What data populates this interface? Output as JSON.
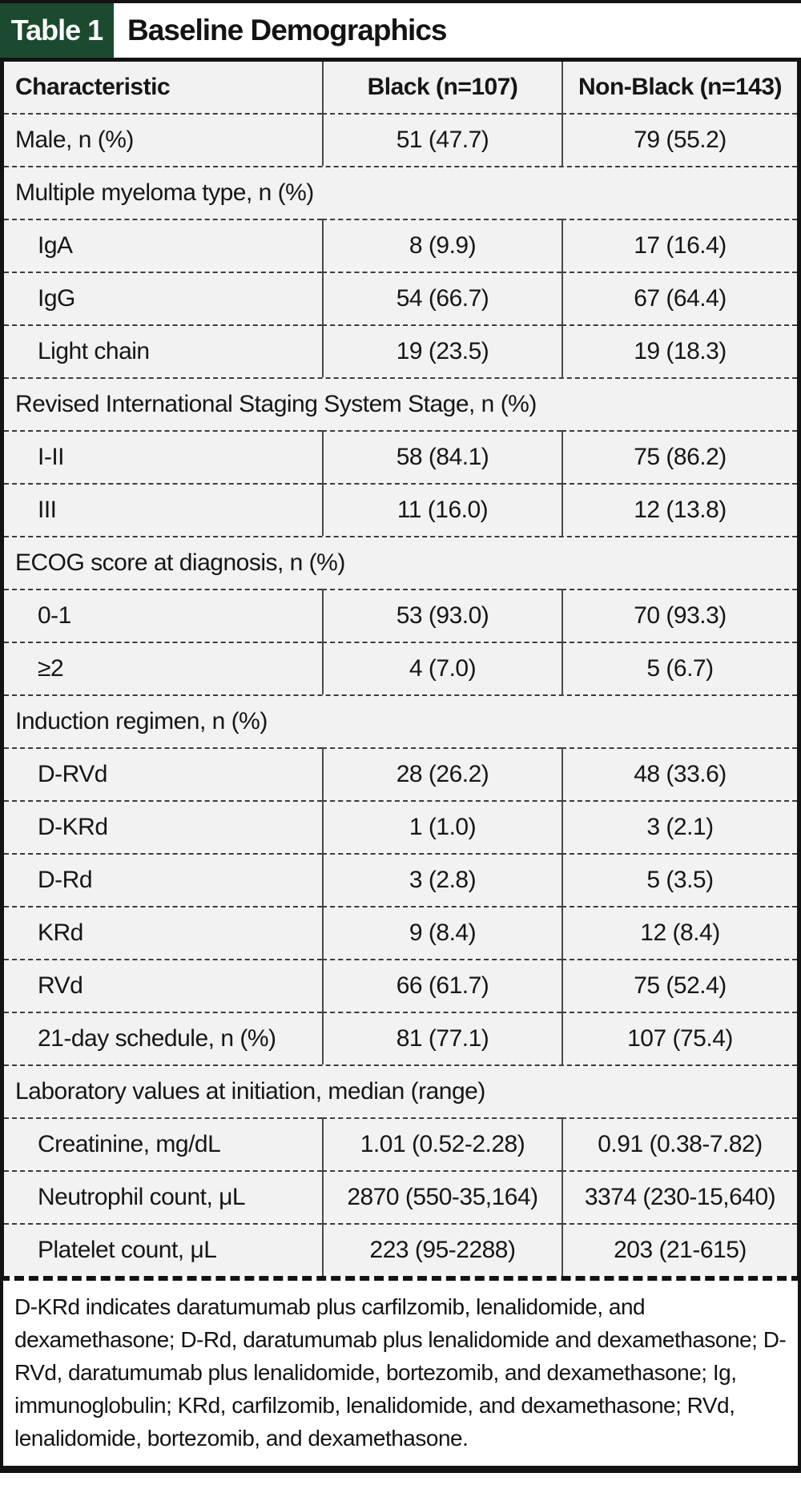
{
  "figure": {
    "label": "Table 1",
    "title": "Baseline Demographics"
  },
  "colors": {
    "accent_green": "#1b4a2e",
    "cell_bg": "#f2f2f2",
    "border_ink": "#131313"
  },
  "table": {
    "columns": [
      "Characteristic",
      "Black (n=107)",
      "Non-Black (n=143)"
    ],
    "rows": [
      {
        "type": "data",
        "label": "Male, n (%)",
        "indent": false,
        "black": "51 (47.7)",
        "nonblack": "79 (55.2)"
      },
      {
        "type": "section",
        "label": "Multiple myeloma type, n (%)"
      },
      {
        "type": "data",
        "label": "IgA",
        "indent": true,
        "black": "8 (9.9)",
        "nonblack": "17 (16.4)"
      },
      {
        "type": "data",
        "label": "IgG",
        "indent": true,
        "black": "54 (66.7)",
        "nonblack": "67 (64.4)"
      },
      {
        "type": "data",
        "label": "Light chain",
        "indent": true,
        "black": "19 (23.5)",
        "nonblack": "19 (18.3)"
      },
      {
        "type": "section",
        "label": "Revised International Staging System Stage, n (%)"
      },
      {
        "type": "data",
        "label": "I-II",
        "indent": true,
        "black": "58 (84.1)",
        "nonblack": "75 (86.2)"
      },
      {
        "type": "data",
        "label": "III",
        "indent": true,
        "black": "11 (16.0)",
        "nonblack": "12 (13.8)"
      },
      {
        "type": "section",
        "label": "ECOG score at diagnosis, n (%)"
      },
      {
        "type": "data",
        "label": "0-1",
        "indent": true,
        "black": "53 (93.0)",
        "nonblack": "70 (93.3)"
      },
      {
        "type": "data",
        "label": "≥2",
        "indent": true,
        "black": "4 (7.0)",
        "nonblack": "5 (6.7)"
      },
      {
        "type": "section",
        "label": "Induction regimen, n (%)"
      },
      {
        "type": "data",
        "label": "D-RVd",
        "indent": true,
        "black": "28 (26.2)",
        "nonblack": "48 (33.6)"
      },
      {
        "type": "data",
        "label": "D-KRd",
        "indent": true,
        "black": "1 (1.0)",
        "nonblack": "3 (2.1)"
      },
      {
        "type": "data",
        "label": "D-Rd",
        "indent": true,
        "black": "3 (2.8)",
        "nonblack": "5 (3.5)"
      },
      {
        "type": "data",
        "label": "KRd",
        "indent": true,
        "black": "9 (8.4)",
        "nonblack": "12 (8.4)"
      },
      {
        "type": "data",
        "label": "RVd",
        "indent": true,
        "black": "66 (61.7)",
        "nonblack": "75 (52.4)"
      },
      {
        "type": "data",
        "label": "21-day schedule, n (%)",
        "indent": true,
        "black": "81 (77.1)",
        "nonblack": "107 (75.4)"
      },
      {
        "type": "section",
        "label": "Laboratory values at initiation, median (range)"
      },
      {
        "type": "data",
        "label": "Creatinine, mg/dL",
        "indent": true,
        "black": "1.01 (0.52-2.28)",
        "nonblack": "0.91 (0.38-7.82)"
      },
      {
        "type": "data",
        "label": "Neutrophil count, μL",
        "indent": true,
        "black": "2870 (550-35,164)",
        "nonblack": "3374 (230-15,640)"
      },
      {
        "type": "data",
        "label": "Platelet count, μL",
        "indent": true,
        "black": "223 (95-2288)",
        "nonblack": "203 (21-615)"
      }
    ]
  },
  "footnote": "D-KRd indicates daratumumab plus carfilzomib, lenalidomide, and dexamethasone; D-Rd, daratumumab plus lenalidomide and dexamethasone; D-RVd, daratumumab plus lenalidomide, bortezomib, and dexamethasone; Ig, immunoglobulin; KRd, carfilzomib, lenalidomide, and dexamethasone; RVd, lenalidomide, bortezomib, and dexamethasone."
}
